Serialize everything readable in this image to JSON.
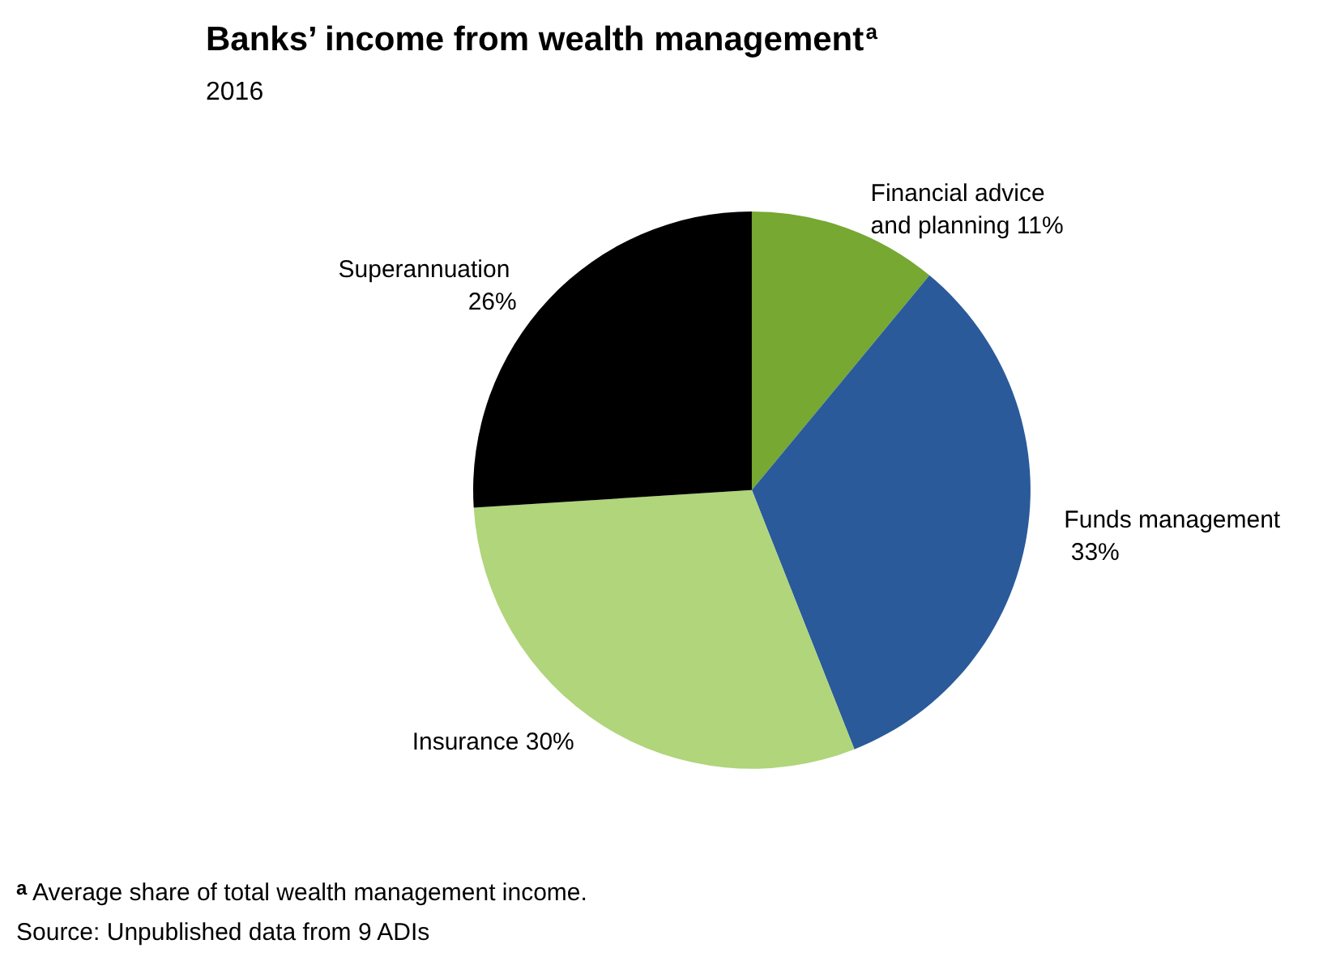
{
  "chart_data": {
    "type": "pie",
    "title": "Banks’ income from wealth management$^{a}$",
    "subtitle": "2016",
    "categories": [
      "Financial advice and planning",
      "Funds management",
      "Insurance",
      "Superannuation"
    ],
    "values": [
      11,
      33,
      30,
      26
    ],
    "value_labels": [
      "11%",
      "33%",
      "30%",
      "26%"
    ],
    "colors": [
      "#76a832",
      "#2a5a9a",
      "#b0d57a",
      "#000000"
    ],
    "legend": false,
    "annotations": [
      "$^{a}$ Average share of total wealth management income.",
      "Source: Unpublished data from 9 ADIs"
    ]
  }
}
